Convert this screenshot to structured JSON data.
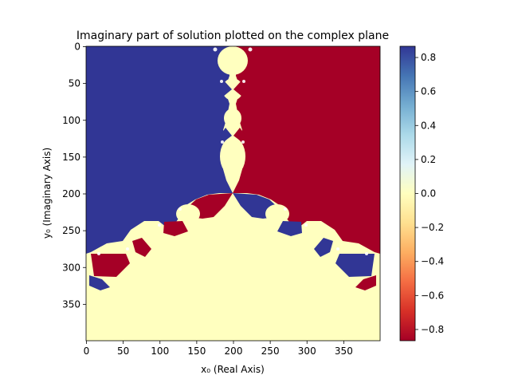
{
  "chart_data": {
    "type": "heatmap",
    "title": "Imaginary part of solution plotted on the complex plane",
    "xlabel": "x₀ (Real Axis)",
    "ylabel": "y₀ (Imaginary Axis)",
    "xlim": [
      0,
      400
    ],
    "ylim": [
      400,
      0
    ],
    "x_ticks": [
      0,
      50,
      100,
      150,
      200,
      250,
      300,
      350
    ],
    "y_ticks": [
      0,
      50,
      100,
      150,
      200,
      250,
      300,
      350
    ],
    "colorbar": {
      "range": [
        -0.866,
        0.866
      ],
      "ticks": [
        "0.8",
        "0.6",
        "0.4",
        "0.2",
        "0.0",
        "−0.2",
        "−0.4",
        "−0.6",
        "−0.8"
      ],
      "tick_values": [
        0.8,
        0.6,
        0.4,
        0.2,
        0.0,
        -0.2,
        -0.4,
        -0.6,
        -0.8
      ],
      "colors": [
        "#a50026",
        "#d73027",
        "#f46d43",
        "#fdae61",
        "#fee090",
        "#ffffbf",
        "#e0f3f8",
        "#abd9e9",
        "#74add1",
        "#4575b4",
        "#313695"
      ]
    },
    "regions": [
      {
        "value": 0.866,
        "color": "#313695",
        "description": "upper-left basin"
      },
      {
        "value": -0.866,
        "color": "#a50026",
        "description": "upper-right basin"
      },
      {
        "value": 0.0,
        "color": "#ffffbf",
        "description": "bottom basin"
      }
    ]
  }
}
